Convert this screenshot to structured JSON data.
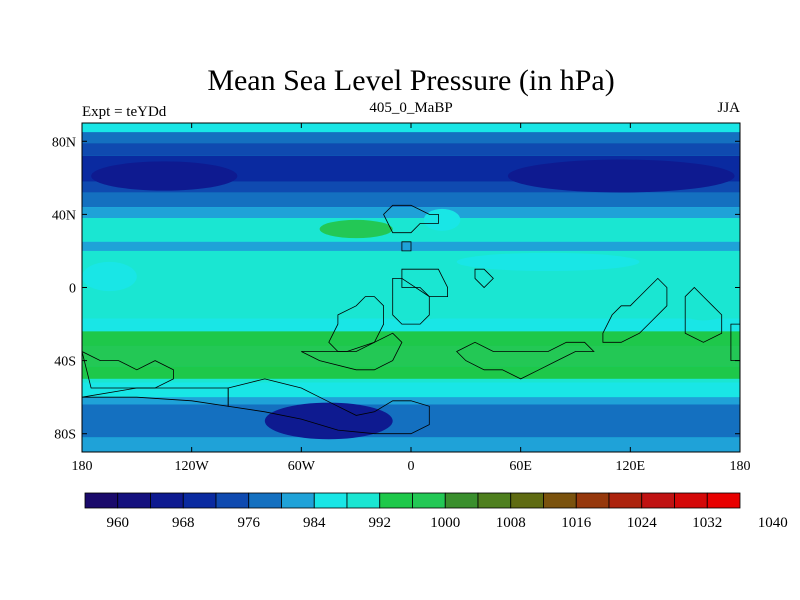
{
  "chart_data": {
    "type": "heatmap",
    "title": "Mean Sea Level Pressure (in hPa)",
    "subtitle_left": "Expt = teYDd",
    "subtitle_center": "405_0_MaBP",
    "subtitle_right": "JJA",
    "x_range": [
      -180,
      180
    ],
    "y_range": [
      -90,
      90
    ],
    "x_ticks": [
      {
        "value": -180,
        "label": "180"
      },
      {
        "value": -120,
        "label": "120W"
      },
      {
        "value": -60,
        "label": "60W"
      },
      {
        "value": 0,
        "label": "0"
      },
      {
        "value": 60,
        "label": "60E"
      },
      {
        "value": 120,
        "label": "120E"
      },
      {
        "value": 180,
        "label": "180"
      }
    ],
    "y_ticks": [
      {
        "value": 80,
        "label": "80N"
      },
      {
        "value": 40,
        "label": "40N"
      },
      {
        "value": 0,
        "label": "0"
      },
      {
        "value": -40,
        "label": "40S"
      },
      {
        "value": -80,
        "label": "80S"
      }
    ],
    "colorbar": {
      "colors": [
        "#1a0a6b",
        "#14107e",
        "#0e1a90",
        "#0a2aa0",
        "#0f4ab0",
        "#1470c0",
        "#1fa2d8",
        "#19e6e6",
        "#1ae6d2",
        "#1ec84a",
        "#23c855",
        "#3a8f2d",
        "#4e7f1e",
        "#5f6b12",
        "#7a520d",
        "#96380c",
        "#ac220c",
        "#c01212",
        "#d40808",
        "#e80000"
      ],
      "labels": [
        {
          "boundary": 1,
          "label": "960"
        },
        {
          "boundary": 3,
          "label": "968"
        },
        {
          "boundary": 5,
          "label": "976"
        },
        {
          "boundary": 7,
          "label": "984"
        },
        {
          "boundary": 9,
          "label": "992"
        },
        {
          "boundary": 11,
          "label": "1000"
        },
        {
          "boundary": 13,
          "label": "1008"
        },
        {
          "boundary": 15,
          "label": "1016"
        },
        {
          "boundary": 17,
          "label": "1024"
        },
        {
          "boundary": 19,
          "label": "1032"
        },
        {
          "boundary": 21,
          "label": "1040"
        }
      ]
    },
    "contour_fill": {
      "background_level": 7,
      "bands": [
        {
          "level": 7,
          "lat_top": 90,
          "lat_bottom": 85
        },
        {
          "level": 5,
          "lat_top": 85,
          "lat_bottom": 79
        },
        {
          "level": 4,
          "lat_top": 79,
          "lat_bottom": 72
        },
        {
          "level": 3,
          "lat_top": 72,
          "lat_bottom": 58
        },
        {
          "level": 4,
          "lat_top": 58,
          "lat_bottom": 52
        },
        {
          "level": 5,
          "lat_top": 52,
          "lat_bottom": 44
        },
        {
          "level": 6,
          "lat_top": 44,
          "lat_bottom": 38
        },
        {
          "level": 8,
          "lat_top": 38,
          "lat_bottom": 25
        },
        {
          "level": 6,
          "lat_top": 25,
          "lat_bottom": 20
        },
        {
          "level": 8,
          "lat_top": 20,
          "lat_bottom": -17
        },
        {
          "level": 7,
          "lat_top": -17,
          "lat_bottom": -24
        },
        {
          "level": 9,
          "lat_top": -24,
          "lat_bottom": -32
        },
        {
          "level": 10,
          "lat_top": -32,
          "lat_bottom": -43
        },
        {
          "level": 9,
          "lat_top": -43,
          "lat_bottom": -50
        },
        {
          "level": 8,
          "lat_top": -50,
          "lat_bottom": -52
        },
        {
          "level": 7,
          "lat_top": -52,
          "lat_bottom": -60
        },
        {
          "level": 6,
          "lat_top": -60,
          "lat_bottom": -64
        },
        {
          "level": 5,
          "lat_top": -64,
          "lat_bottom": -82
        },
        {
          "level": 6,
          "lat_top": -82,
          "lat_bottom": -90
        }
      ],
      "blobs": [
        {
          "level": 2,
          "cx": -135,
          "cy": 61,
          "rx": 40,
          "ry": 8
        },
        {
          "level": 2,
          "cx": 115,
          "cy": 61,
          "rx": 62,
          "ry": 9
        },
        {
          "level": 2,
          "cx": -45,
          "cy": -73,
          "rx": 35,
          "ry": 10
        },
        {
          "level": 10,
          "cx": -30,
          "cy": 32,
          "rx": 20,
          "ry": 5
        },
        {
          "level": 7,
          "cx": 17,
          "cy": 37,
          "rx": 10,
          "ry": 6
        },
        {
          "level": 7,
          "cx": 75,
          "cy": 14,
          "rx": 50,
          "ry": 5
        },
        {
          "level": 7,
          "cx": -165,
          "cy": 6,
          "rx": 15,
          "ry": 8
        },
        {
          "level": 8,
          "cx": 0,
          "cy": -10,
          "rx": 25,
          "ry": 8
        },
        {
          "level": 8,
          "cx": 160,
          "cy": -10,
          "rx": 15,
          "ry": 8
        }
      ]
    },
    "land_outlines": [
      [
        [
          -10,
          -5
        ],
        [
          -10,
          5
        ],
        [
          -5,
          5
        ],
        [
          -5,
          0
        ],
        [
          5,
          0
        ],
        [
          10,
          -5
        ],
        [
          10,
          -15
        ],
        [
          5,
          -20
        ],
        [
          -5,
          -20
        ],
        [
          -10,
          -15
        ]
      ],
      [
        [
          -5,
          5
        ],
        [
          -5,
          10
        ],
        [
          15,
          10
        ],
        [
          20,
          0
        ],
        [
          20,
          -5
        ],
        [
          10,
          -5
        ]
      ],
      [
        [
          -40,
          -20
        ],
        [
          -40,
          -15
        ],
        [
          -30,
          -10
        ],
        [
          -25,
          -5
        ],
        [
          -20,
          -5
        ],
        [
          -15,
          -10
        ],
        [
          -15,
          -20
        ],
        [
          -20,
          -30
        ],
        [
          -30,
          -35
        ],
        [
          -40,
          -35
        ],
        [
          -45,
          -30
        ]
      ],
      [
        [
          -60,
          -35
        ],
        [
          -50,
          -40
        ],
        [
          -30,
          -45
        ],
        [
          -20,
          -45
        ],
        [
          -10,
          -40
        ],
        [
          -5,
          -30
        ],
        [
          -10,
          -25
        ],
        [
          -20,
          -30
        ],
        [
          -35,
          -35
        ]
      ],
      [
        [
          25,
          -35
        ],
        [
          30,
          -40
        ],
        [
          40,
          -45
        ],
        [
          50,
          -45
        ],
        [
          60,
          -50
        ],
        [
          70,
          -45
        ],
        [
          80,
          -40
        ],
        [
          90,
          -35
        ],
        [
          100,
          -35
        ],
        [
          95,
          -30
        ],
        [
          85,
          -30
        ],
        [
          75,
          -35
        ],
        [
          60,
          -35
        ],
        [
          45,
          -35
        ],
        [
          35,
          -30
        ]
      ],
      [
        [
          105,
          -25
        ],
        [
          110,
          -15
        ],
        [
          115,
          -10
        ],
        [
          120,
          -10
        ],
        [
          125,
          -5
        ],
        [
          130,
          0
        ],
        [
          135,
          5
        ],
        [
          140,
          0
        ],
        [
          140,
          -10
        ],
        [
          130,
          -20
        ],
        [
          125,
          -25
        ],
        [
          115,
          -30
        ],
        [
          105,
          -30
        ]
      ],
      [
        [
          150,
          -15
        ],
        [
          150,
          -5
        ],
        [
          155,
          0
        ],
        [
          160,
          -5
        ],
        [
          165,
          -10
        ],
        [
          170,
          -15
        ],
        [
          170,
          -25
        ],
        [
          160,
          -30
        ],
        [
          150,
          -25
        ]
      ],
      [
        [
          175,
          -20
        ],
        [
          180,
          -20
        ],
        [
          180,
          -40
        ],
        [
          175,
          -40
        ]
      ],
      [
        [
          -15,
          40
        ],
        [
          -10,
          45
        ],
        [
          0,
          45
        ],
        [
          10,
          40
        ],
        [
          15,
          40
        ],
        [
          15,
          35
        ],
        [
          5,
          35
        ],
        [
          0,
          30
        ],
        [
          -10,
          30
        ]
      ],
      [
        [
          -5,
          25
        ],
        [
          0,
          25
        ],
        [
          0,
          20
        ],
        [
          -5,
          20
        ]
      ],
      [
        [
          35,
          10
        ],
        [
          40,
          10
        ],
        [
          45,
          5
        ],
        [
          40,
          0
        ],
        [
          35,
          5
        ]
      ],
      [
        [
          -180,
          -35
        ],
        [
          -170,
          -40
        ],
        [
          -160,
          -40
        ],
        [
          -150,
          -45
        ],
        [
          -140,
          -40
        ],
        [
          -130,
          -45
        ],
        [
          -130,
          -50
        ],
        [
          -140,
          -55
        ],
        [
          -160,
          -55
        ],
        [
          -175,
          -55
        ]
      ],
      [
        [
          -100,
          -55
        ],
        [
          -80,
          -50
        ],
        [
          -60,
          -55
        ],
        [
          -50,
          -60
        ],
        [
          -40,
          -65
        ],
        [
          -30,
          -70
        ],
        [
          -20,
          -68
        ],
        [
          -10,
          -62
        ],
        [
          0,
          -62
        ],
        [
          10,
          -65
        ],
        [
          10,
          -75
        ],
        [
          0,
          -80
        ],
        [
          -20,
          -80
        ],
        [
          -40,
          -78
        ],
        [
          -60,
          -72
        ],
        [
          -80,
          -68
        ],
        [
          -100,
          -65
        ]
      ],
      [
        [
          -180,
          -60
        ],
        [
          -150,
          -60
        ],
        [
          -120,
          -62
        ],
        [
          -100,
          -65
        ],
        [
          -100,
          -55
        ],
        [
          -120,
          -55
        ],
        [
          -150,
          -55
        ]
      ]
    ]
  }
}
